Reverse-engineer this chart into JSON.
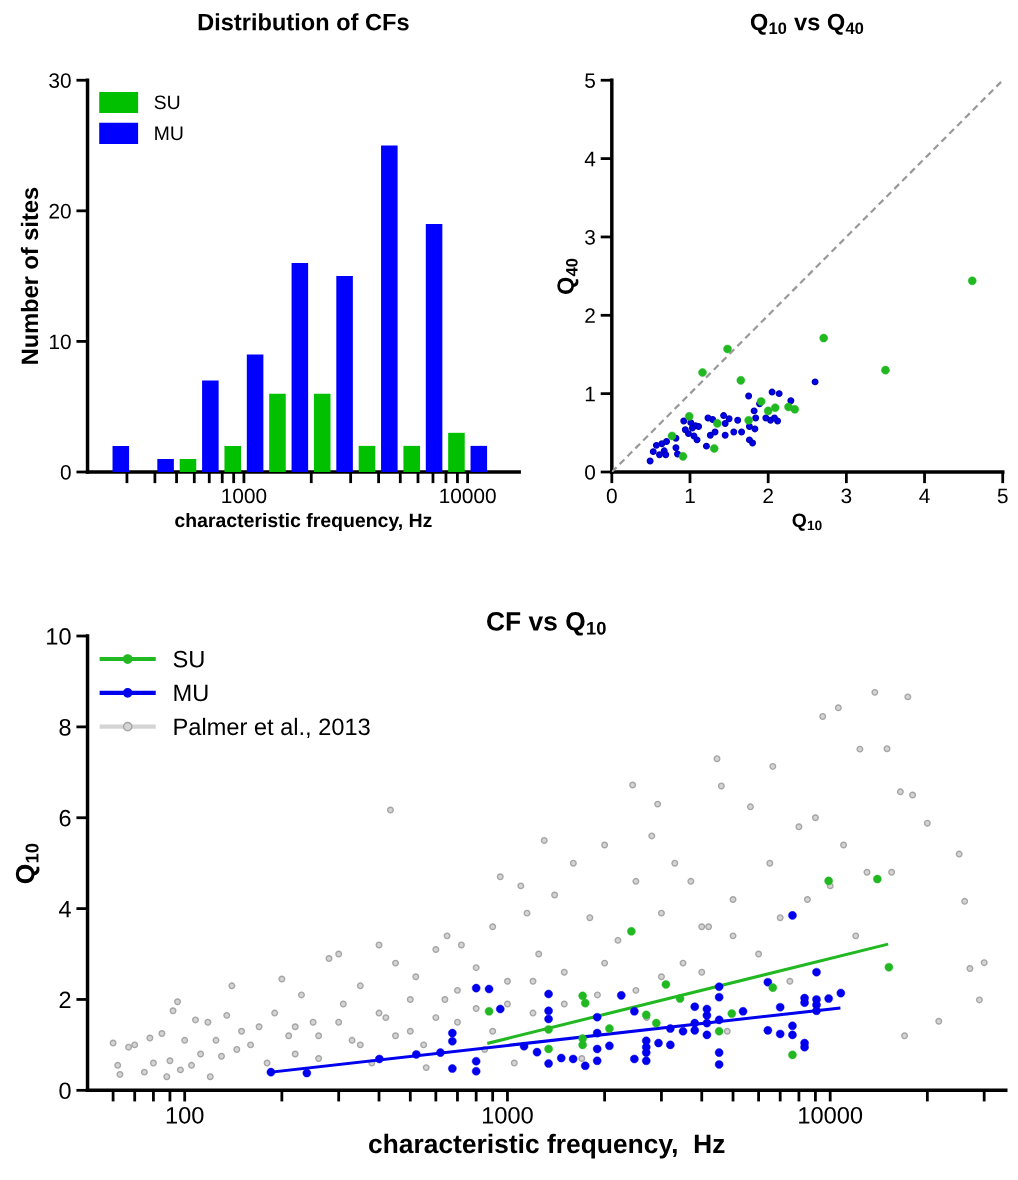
{
  "chart_data": [
    {
      "type": "bar",
      "title": "Distribution of CFs",
      "xlabel": "characteristic frequency, Hz",
      "ylabel": "Number of sites",
      "log": "x",
      "x": [
        251,
        398,
        631,
        1000,
        1585,
        2512,
        3981,
        6310,
        10000
      ],
      "series": [
        {
          "name": "SU",
          "color": "#00c000",
          "values": [
            null,
            null,
            1,
            2,
            6,
            6,
            2,
            2,
            3
          ]
        },
        {
          "name": "MU",
          "color": "#0000ff",
          "values": [
            2,
            1,
            7,
            9,
            16,
            15,
            25,
            19,
            2
          ]
        }
      ],
      "xlim": [
        200,
        17000
      ],
      "xticks": [
        {
          "value": 300,
          "label": null
        },
        {
          "value": 400,
          "label": null
        },
        {
          "value": 500,
          "label": null
        },
        {
          "value": 600,
          "label": null
        },
        {
          "value": 700,
          "label": null
        },
        {
          "value": 800,
          "label": null
        },
        {
          "value": 900,
          "label": null
        },
        1000,
        {
          "value": 2000,
          "label": null
        },
        {
          "value": 3000,
          "label": null
        },
        {
          "value": 4000,
          "label": null
        },
        {
          "value": 5000,
          "label": null
        },
        {
          "value": 6000,
          "label": null
        },
        {
          "value": 7000,
          "label": null
        },
        {
          "value": 8000,
          "label": null
        },
        {
          "value": 9000,
          "label": null
        },
        10000
      ],
      "ylim": [
        0,
        30
      ],
      "yticks": [
        0,
        10,
        20,
        30
      ],
      "legend": "top left",
      "grid": false
    },
    {
      "type": "scatter",
      "title": "Q$_{10}$ vs Q$_{40}$",
      "xlabel": "Q$_{10}$",
      "ylabel": "Q$_{40}$",
      "series": [
        {
          "type": "line",
          "marker": "none",
          "color": "#999999",
          "line_style": "dashed",
          "x": [
            0,
            5
          ],
          "values": [
            0,
            5
          ]
        },
        {
          "marker": "circle",
          "color": "#22b822",
          "x": [
            4.61,
            2.71,
            3.5,
            1.48,
            1.16,
            1.65,
            0.99,
            0.77,
            0.91,
            1.31,
            1.35,
            1.75,
            1.91,
            2.0,
            2.09,
            2.26,
            2.34
          ],
          "values": [
            2.44,
            1.71,
            1.3,
            1.57,
            1.27,
            1.17,
            0.71,
            0.46,
            0.2,
            0.3,
            0.62,
            0.66,
            0.9,
            0.78,
            0.82,
            0.83,
            0.8
          ]
        },
        {
          "marker": "circle",
          "color": "#0000ee",
          "x": [
            0.49,
            0.53,
            0.57,
            0.61,
            0.64,
            0.67,
            0.7,
            0.69,
            0.82,
            0.82,
            0.84,
            0.92,
            0.94,
            0.98,
            1.01,
            1.03,
            1.05,
            1.07,
            1.11,
            1.09,
            1.21,
            1.23,
            1.26,
            1.29,
            1.32,
            1.43,
            1.45,
            1.45,
            1.5,
            1.56,
            1.61,
            1.66,
            1.75,
            1.76,
            1.76,
            1.8,
            1.82,
            1.84,
            1.83,
            1.89,
            1.97,
            2.03,
            2.05,
            2.08,
            2.14,
            2.12,
            2.29,
            2.6
          ],
          "values": [
            0.14,
            0.26,
            0.34,
            0.22,
            0.36,
            0.27,
            0.39,
            0.22,
            0.43,
            0.31,
            0.23,
            0.65,
            0.54,
            0.49,
            0.63,
            0.56,
            0.46,
            0.59,
            0.58,
            0.41,
            0.33,
            0.69,
            0.47,
            0.67,
            0.51,
            0.72,
            0.62,
            0.47,
            0.68,
            0.51,
            0.66,
            0.51,
            0.97,
            0.58,
            0.41,
            0.37,
            0.78,
            0.69,
            0.55,
            0.87,
            0.69,
            0.66,
            1.02,
            0.69,
            1.0,
            0.65,
            0.91,
            1.15
          ]
        }
      ],
      "xlim": [
        0,
        5
      ],
      "xticks": [
        0,
        1,
        2,
        3,
        4,
        5
      ],
      "ylim": [
        0,
        5
      ],
      "yticks": [
        0,
        1,
        2,
        3,
        4,
        5
      ],
      "grid": false
    },
    {
      "type": "scatter",
      "title": "CF vs Q$_{10}$",
      "xlabel": "characteristic frequency,  Hz",
      "ylabel": "Q$_{10}$",
      "log": "x",
      "series": [
        {
          "name": "SU",
          "marker": "circle",
          "color": "#22b822",
          "x": [
            877,
            2421,
            1710,
            1742,
            1341,
            1341,
            1710,
            1710,
            2070,
            2692,
            2892,
            3097,
            3426,
            4528,
            4955,
            6640,
            7640,
            9890,
            14000,
            15200
          ],
          "values": [
            1.74,
            3.5,
            2.08,
            1.92,
            1.34,
            0.91,
            1.14,
            1.0,
            1.36,
            1.66,
            1.48,
            2.33,
            2.02,
            1.3,
            1.69,
            2.26,
            0.78,
            4.61,
            4.65,
            2.71
          ]
        },
        {
          "name": "MU",
          "marker": "circle",
          "color": "#0000ee",
          "x": [
            185,
            239,
            401,
            522,
            620,
            675,
            675,
            675,
            800,
            877,
            800,
            800,
            950,
            1126,
            1235,
            1341,
            1341,
            1341,
            1341,
            1468,
            1598,
            1742,
            1897,
            1897,
            1897,
            1897,
            2070,
            2253,
            2473,
            2473,
            2692,
            2692,
            2692,
            2692,
            2938,
            3197,
            3197,
            3500,
            3805,
            3805,
            3805,
            4150,
            4150,
            4150,
            4150,
            4528,
            4528,
            4528,
            4528,
            4528,
            5370,
            6410,
            6410,
            7000,
            7000,
            7640,
            7640,
            7640,
            8330,
            8330,
            8330,
            8330,
            9070,
            9070,
            9070,
            9070,
            9890,
            10790
          ],
          "values": [
            0.4,
            0.38,
            0.69,
            0.79,
            0.83,
            1.26,
            1.08,
            0.48,
            2.25,
            2.23,
            0.64,
            0.42,
            1.79,
            0.97,
            0.84,
            2.12,
            1.75,
            1.57,
            0.59,
            0.71,
            0.69,
            0.54,
            1.61,
            1.26,
            0.91,
            0.65,
            0.98,
            2.09,
            1.74,
            0.69,
            1.09,
            0.95,
            0.83,
            0.65,
            1.04,
            1.0,
            1.36,
            1.3,
            1.84,
            1.48,
            1.32,
            1.79,
            1.65,
            1.48,
            1.22,
            2.28,
            2.05,
            1.55,
            0.83,
            0.57,
            1.74,
            2.38,
            1.32,
            1.83,
            1.24,
            3.85,
            1.42,
            1.22,
            2.03,
            1.93,
            1.04,
            0.95,
            2.6,
            2.0,
            1.88,
            1.75,
            2.02,
            2.14
          ]
        },
        {
          "name": "Palmer et al., 2013",
          "marker": "circle",
          "color": "#d4d4d4",
          "x": [
            60,
            62,
            63,
            67,
            70,
            75,
            78,
            80,
            85,
            88,
            90,
            92,
            95,
            97,
            100,
            105,
            108,
            112,
            118,
            120,
            125,
            130,
            135,
            140,
            145,
            150,
            160,
            170,
            180,
            190,
            200,
            210,
            220,
            220,
            230,
            250,
            260,
            260,
            280,
            300,
            300,
            310,
            330,
            350,
            350,
            380,
            400,
            400,
            420,
            434,
            450,
            450,
            500,
            500,
            520,
            550,
            560,
            600,
            600,
            640,
            650,
            700,
            700,
            720,
            800,
            800,
            850,
            900,
            900,
            950,
            1000,
            1000,
            1050,
            1100,
            1150,
            1200,
            1200,
            1250,
            1300,
            1400,
            1500,
            1500,
            1600,
            1700,
            1800,
            1900,
            2000,
            2000,
            2200,
            2443,
            2500,
            2500,
            2700,
            2800,
            2920,
            3000,
            3000,
            3200,
            3300,
            3500,
            3700,
            4000,
            4000,
            4200,
            4460,
            4600,
            4800,
            5000,
            5000,
            5660,
            6000,
            6500,
            6640,
            7000,
            7500,
            8000,
            8500,
            9000,
            9480,
            10000,
            10600,
            11000,
            12000,
            12360,
            13000,
            13750,
            15000,
            15500,
            16500,
            17000,
            17400,
            18000,
            20000,
            21700,
            25100,
            26100,
            27100,
            29000,
            30000
          ],
          "values": [
            1.04,
            0.55,
            0.35,
            0.95,
            1.0,
            0.4,
            1.15,
            0.6,
            1.25,
            0.3,
            0.65,
            1.75,
            1.95,
            0.45,
            1.1,
            0.55,
            1.55,
            0.8,
            1.5,
            0.3,
            1.1,
            0.75,
            1.65,
            2.3,
            0.9,
            1.3,
            1.0,
            1.4,
            0.6,
            1.7,
            2.45,
            1.2,
            0.8,
            1.4,
            2.1,
            1.5,
            0.7,
            1.2,
            2.9,
            3.0,
            1.5,
            1.9,
            1.1,
            2.3,
            1.0,
            0.6,
            3.2,
            1.7,
            1.6,
            6.17,
            2.8,
            1.2,
            1.3,
            2.0,
            2.5,
            1.0,
            0.5,
            3.1,
            1.6,
            2.0,
            3.4,
            1.5,
            2.2,
            3.2,
            2.7,
            1.8,
            0.9,
            3.6,
            1.3,
            4.7,
            2.4,
            1.9,
            0.6,
            4.5,
            3.9,
            1.7,
            2.4,
            3.0,
            5.5,
            4.3,
            2.6,
            1.9,
            5.0,
            0.7,
            3.8,
            2.1,
            5.4,
            2.8,
            3.3,
            6.72,
            4.6,
            2.2,
            1.6,
            5.6,
            6.3,
            3.9,
            2.5,
            null,
            5.0,
            2.8,
            4.6,
            3.6,
            2.6,
            3.6,
            7.3,
            6.7,
            1.3,
            4.2,
            3.4,
            6.24,
            3.0,
            5.0,
            7.13,
            3.8,
            2.4,
            5.8,
            4.2,
            6.0,
            8.23,
            4.5,
            8.42,
            5.4,
            3.4,
            7.51,
            4.8,
            8.76,
            7.52,
            4.8,
            6.57,
            1.2,
            8.66,
            6.5,
            5.88,
            1.52,
            5.2,
            4.16,
            2.68,
            1.99,
            2.81
          ]
        },
        {
          "type": "line",
          "marker": "none",
          "color": "#22b822",
          "x": [
            875,
            14960
          ],
          "values": [
            1.04,
            3.21
          ]
        },
        {
          "type": "line",
          "marker": "none",
          "color": "#0000ee",
          "x": [
            185,
            10640
          ],
          "values": [
            0.4,
            1.81
          ]
        }
      ],
      "xlim": [
        50,
        35000
      ],
      "xticks": [
        {
          "value": 60,
          "label": null
        },
        {
          "value": 70,
          "label": null
        },
        {
          "value": 80,
          "label": null
        },
        {
          "value": 90,
          "label": null
        },
        100,
        {
          "value": 200,
          "label": null
        },
        {
          "value": 300,
          "label": null
        },
        {
          "value": 400,
          "label": null
        },
        {
          "value": 500,
          "label": null
        },
        {
          "value": 600,
          "label": null
        },
        {
          "value": 700,
          "label": null
        },
        {
          "value": 800,
          "label": null
        },
        {
          "value": 900,
          "label": null
        },
        1000,
        {
          "value": 2000,
          "label": null
        },
        {
          "value": 3000,
          "label": null
        },
        {
          "value": 4000,
          "label": null
        },
        {
          "value": 5000,
          "label": null
        },
        {
          "value": 6000,
          "label": null
        },
        {
          "value": 7000,
          "label": null
        },
        {
          "value": 8000,
          "label": null
        },
        {
          "value": 9000,
          "label": null
        },
        10000,
        {
          "value": 20000,
          "label": null
        },
        {
          "value": 30000,
          "label": null
        }
      ],
      "ylim": [
        0,
        10
      ],
      "yticks": [
        0,
        2,
        4,
        6,
        8,
        10
      ],
      "legend": "top left",
      "grid": false
    }
  ]
}
